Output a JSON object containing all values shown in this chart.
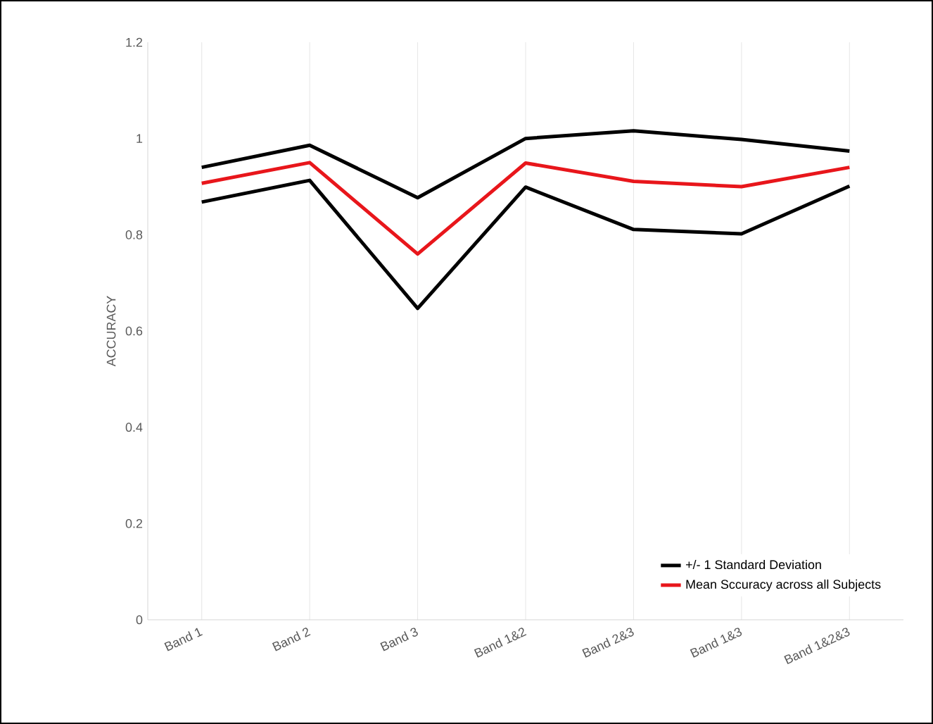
{
  "chart_data": {
    "type": "line",
    "ylabel": "ACCURACY",
    "categories": [
      "Band 1",
      "Band 2",
      "Band 3",
      "Band 1&2",
      "Band 2&3",
      "Band 1&3",
      "Band 1&2&3"
    ],
    "series": [
      {
        "name": "+/- 1 Standard Deviation",
        "color": "#000000",
        "values": [
          0.94,
          0.986,
          0.877,
          1.0,
          1.016,
          0.998,
          0.974
        ]
      },
      {
        "color": "#000000",
        "values": [
          0.868,
          0.913,
          0.647,
          0.899,
          0.811,
          0.802,
          0.901
        ]
      },
      {
        "name": "Mean Sccuracy across all Subjects",
        "color": "#e8161b",
        "values": [
          0.907,
          0.95,
          0.76,
          0.949,
          0.911,
          0.9,
          0.94
        ]
      }
    ],
    "ylim": [
      0,
      1.2
    ],
    "yticks": [
      0,
      0.2,
      0.4,
      0.6,
      0.8,
      1,
      1.2
    ],
    "grid": "x",
    "legend": "bottom right",
    "marker": "none",
    "line_style": "solid"
  }
}
